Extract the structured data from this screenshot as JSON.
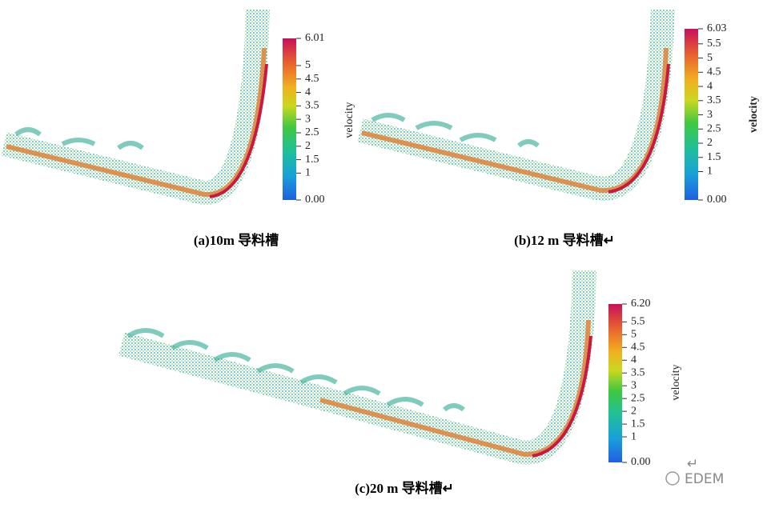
{
  "panels": [
    {
      "caption": "(a)10m 导料槽",
      "colorbar": {
        "label": "velocity",
        "ticks": [
          "6.01",
          "5",
          "4.5",
          "4",
          "3.5",
          "3",
          "2.5",
          "2",
          "1.5",
          "1",
          "0.00"
        ]
      }
    },
    {
      "caption": "(b)12 m 导料槽↵",
      "colorbar": {
        "label": "velocity",
        "ticks": [
          "6.03",
          "5.5",
          "5",
          "4.5",
          "4",
          "3.5",
          "3",
          "2.5",
          "2",
          "1.5",
          "1",
          "0.00"
        ]
      }
    },
    {
      "caption": "(c)20 m 导料槽↵",
      "colorbar": {
        "label": "velocity",
        "ticks": [
          "6.20",
          "5.5",
          "5",
          "4.5",
          "4",
          "3.5",
          "3",
          "2.5",
          "2",
          "1.5",
          "1",
          "0.00"
        ]
      }
    }
  ],
  "watermark": {
    "return_mark": "↵",
    "text": "EDEM"
  }
}
